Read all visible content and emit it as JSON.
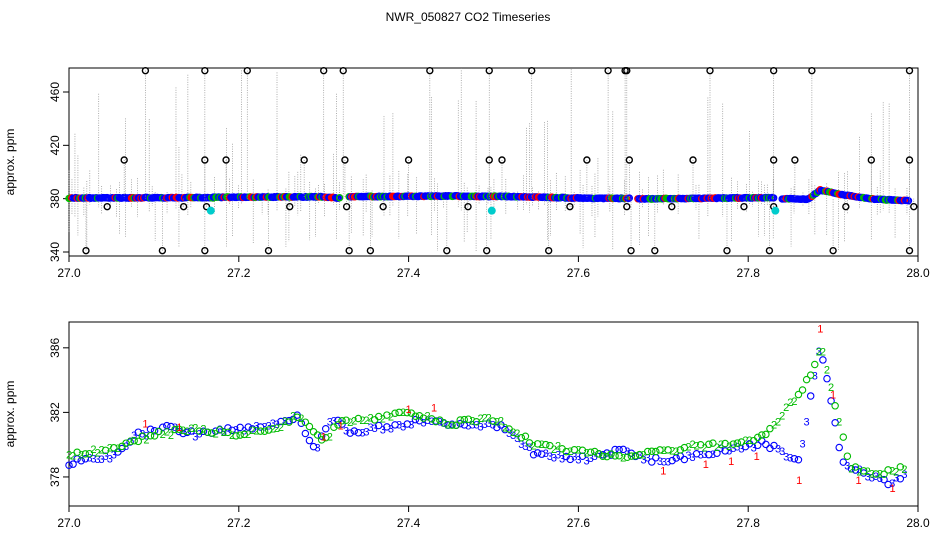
{
  "title": "NWR_050827  CO2 Timeseries",
  "chart_data": [
    {
      "type": "scatter",
      "xlim": [
        27.0,
        28.0
      ],
      "ylim": [
        337,
        478
      ],
      "x_ticks": [
        27.0,
        27.2,
        27.4,
        27.6,
        27.8,
        28.0
      ],
      "x_tick_labels": [
        "27.0",
        "27.2",
        "27.4",
        "27.6",
        "27.8",
        "28.0"
      ],
      "y_ticks": [
        340,
        380,
        420,
        460
      ],
      "y_tick_labels": [
        "340",
        "380",
        "420",
        "460"
      ],
      "ylabel": "approx. ppm",
      "xlabel": "",
      "grid": false,
      "colors": {
        "baseline_a": "#0000ff",
        "baseline_b": "#ff0000",
        "baseline_c": "#00bb00",
        "outlier_ring": "#000000",
        "flagged": "#00cccc",
        "spike_line": "#8c8c8c"
      },
      "baseline_segments": [
        {
          "x": [
            27.0,
            27.15,
            27.17
          ],
          "y": [
            380.5,
            380.8,
            380.6
          ]
        },
        {
          "x": [
            27.17,
            27.3,
            27.32
          ],
          "y": [
            381,
            381.4,
            380.4
          ]
        },
        {
          "x": [
            27.33,
            27.45,
            27.5
          ],
          "y": [
            381.5,
            382,
            381.6
          ]
        },
        {
          "x": [
            27.5,
            27.55,
            27.6,
            27.66
          ],
          "y": [
            381.8,
            381.2,
            380.4,
            380.2
          ]
        },
        {
          "x": [
            27.67,
            27.75,
            27.83
          ],
          "y": [
            379.8,
            380.3,
            380.8
          ]
        },
        {
          "x": [
            27.84,
            27.87,
            27.885,
            27.91,
            27.95,
            27.99
          ],
          "y": [
            380,
            379.5,
            386.5,
            383,
            379.5,
            378.5
          ]
        }
      ],
      "outliers_high": [
        27.09,
        27.16,
        27.21,
        27.3,
        27.323,
        27.425,
        27.495,
        27.545,
        27.635,
        27.655,
        27.657,
        27.755,
        27.83,
        27.875,
        27.99
      ],
      "outliers_410": [
        27.065,
        27.16,
        27.185,
        27.277,
        27.325,
        27.4,
        27.495,
        27.51,
        27.61,
        27.66,
        27.735,
        27.83,
        27.855,
        27.945,
        27.99
      ],
      "outliers_low": [
        27.02,
        27.11,
        27.16,
        27.235,
        27.33,
        27.355,
        27.445,
        27.492,
        27.565,
        27.662,
        27.69,
        27.775,
        27.825,
        27.9,
        27.99
      ],
      "outliers_374": [
        27.045,
        27.135,
        27.162,
        27.26,
        27.327,
        27.37,
        27.47,
        27.59,
        27.657,
        27.71,
        27.795,
        27.83,
        27.915,
        27.995
      ],
      "outlier_values": {
        "high": 476,
        "mid": 409,
        "low": 341,
        "near": 374
      },
      "flagged": [
        {
          "x": 27.167,
          "y": 371
        },
        {
          "x": 27.498,
          "y": 371
        },
        {
          "x": 27.832,
          "y": 371
        }
      ]
    },
    {
      "type": "scatter",
      "xlim": [
        27.0,
        28.0
      ],
      "ylim": [
        376.2,
        387.6
      ],
      "x_ticks": [
        27.0,
        27.2,
        27.4,
        27.6,
        27.8,
        28.0
      ],
      "x_tick_labels": [
        "27.0",
        "27.2",
        "27.4",
        "27.6",
        "27.8",
        "28.0"
      ],
      "y_ticks": [
        378,
        382,
        386
      ],
      "y_tick_labels": [
        "378",
        "382",
        "386"
      ],
      "ylabel": "approx. ppm",
      "xlabel": "",
      "grid": false,
      "marker_labels": [
        "1",
        "2",
        "3"
      ],
      "colors": {
        "1": "#ff0000",
        "2": "#00bb00",
        "3": "#0000ff"
      },
      "series": [
        {
          "name": "3",
          "x": [
            27.0,
            27.05,
            27.08,
            27.12,
            27.15,
            27.17,
            27.22,
            27.27,
            27.29,
            27.31,
            27.33,
            27.36,
            27.42,
            27.46,
            27.5,
            27.52,
            27.55,
            27.6,
            27.65,
            27.7,
            27.78,
            27.82,
            27.86,
            27.875,
            27.885,
            27.91,
            27.95,
            27.97,
            27.985
          ],
          "y": [
            378.9,
            379.2,
            380.6,
            381.1,
            380.6,
            380.9,
            381.1,
            381.7,
            379.6,
            381.7,
            380.8,
            381.0,
            381.5,
            381.3,
            381.3,
            380.8,
            379.4,
            379.1,
            379.6,
            378.9,
            379.8,
            380.1,
            378.9,
            383.5,
            386.2,
            379.0,
            377.9,
            377.6,
            378.3
          ]
        },
        {
          "name": "2",
          "x": [
            27.0,
            27.06,
            27.1,
            27.15,
            27.2,
            27.25,
            27.27,
            27.3,
            27.32,
            27.4,
            27.45,
            27.5,
            27.55,
            27.6,
            27.66,
            27.72,
            27.8,
            27.82,
            27.875,
            27.885,
            27.92,
            27.95,
            27.985
          ],
          "y": [
            379.3,
            379.9,
            380.6,
            381.0,
            380.7,
            381.2,
            381.9,
            380.1,
            381.5,
            381.9,
            381.3,
            381.6,
            380.0,
            379.6,
            379.3,
            379.8,
            380.2,
            380.5,
            384.3,
            386.3,
            378.6,
            378.2,
            378.6
          ]
        }
      ],
      "red_ones": [
        {
          "x": 27.09,
          "y": 381.3
        },
        {
          "x": 27.13,
          "y": 381.1
        },
        {
          "x": 27.3,
          "y": 380.5
        },
        {
          "x": 27.32,
          "y": 381.2
        },
        {
          "x": 27.4,
          "y": 382.2
        },
        {
          "x": 27.43,
          "y": 382.3
        },
        {
          "x": 27.7,
          "y": 378.4
        },
        {
          "x": 27.75,
          "y": 378.8
        },
        {
          "x": 27.78,
          "y": 379.0
        },
        {
          "x": 27.81,
          "y": 379.3
        },
        {
          "x": 27.86,
          "y": 377.8
        },
        {
          "x": 27.885,
          "y": 387.2
        },
        {
          "x": 27.9,
          "y": 383.1
        },
        {
          "x": 27.93,
          "y": 377.8
        },
        {
          "x": 27.97,
          "y": 377.3
        }
      ]
    }
  ]
}
